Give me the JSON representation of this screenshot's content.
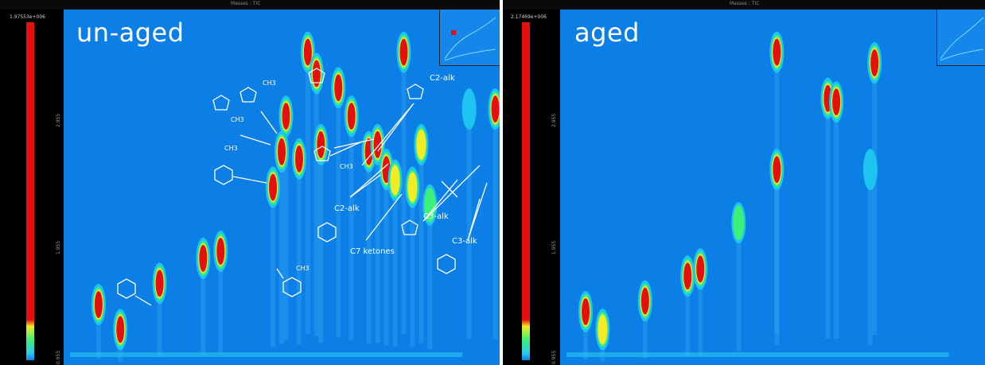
{
  "left_panel": {
    "top_title": "Masses : TIC",
    "scale_max": "1.97553e+006",
    "y_tick_1": "2.955",
    "y_tick_2": "1.955",
    "y_tick_3": "0.955",
    "big_label": "un-aged"
  },
  "right_panel": {
    "top_title": "Masses : TIC",
    "scale_max": "2.17469e+006",
    "y_tick_1": "2.955",
    "y_tick_2": "1.955",
    "y_tick_3": "0.955",
    "big_label": "aged"
  },
  "annotations": {
    "c2_alk_top": "C2-alk",
    "c2_alk_mid": "C2-alk",
    "c3_alk_right": "C3-alk",
    "c3_alk_bottom": "C3-alk",
    "c7_ketones": "C7 ketones",
    "ch3": "CH3"
  },
  "colors": {
    "background": "#0b7fe6",
    "peak_low": "#29c8ee",
    "peak_mid": "#3df07a",
    "peak_high": "#f4ec22",
    "peak_top": "#e40f0f",
    "frame": "#000000"
  },
  "chart_data": [
    {
      "type": "heatmap",
      "title": "un-aged",
      "colorscale": [
        "#1cc4ef",
        "#3df07a",
        "#f4ec22",
        "#e40f0f"
      ],
      "peaks": [
        {
          "x": 0.08,
          "y": 0.17,
          "i": 0.95
        },
        {
          "x": 0.13,
          "y": 0.1,
          "i": 0.9
        },
        {
          "x": 0.22,
          "y": 0.23,
          "i": 0.95
        },
        {
          "x": 0.32,
          "y": 0.3,
          "i": 0.95
        },
        {
          "x": 0.36,
          "y": 0.32,
          "i": 0.95
        },
        {
          "x": 0.48,
          "y": 0.5,
          "i": 0.95
        },
        {
          "x": 0.5,
          "y": 0.6,
          "i": 0.95
        },
        {
          "x": 0.51,
          "y": 0.7,
          "i": 0.95
        },
        {
          "x": 0.54,
          "y": 0.58,
          "i": 0.95
        },
        {
          "x": 0.56,
          "y": 0.88,
          "i": 0.95
        },
        {
          "x": 0.58,
          "y": 0.82,
          "i": 0.95
        },
        {
          "x": 0.59,
          "y": 0.62,
          "i": 0.95
        },
        {
          "x": 0.63,
          "y": 0.78,
          "i": 0.9
        },
        {
          "x": 0.66,
          "y": 0.7,
          "i": 0.9
        },
        {
          "x": 0.7,
          "y": 0.6,
          "i": 0.95
        },
        {
          "x": 0.72,
          "y": 0.62,
          "i": 0.95
        },
        {
          "x": 0.74,
          "y": 0.55,
          "i": 0.9
        },
        {
          "x": 0.76,
          "y": 0.52,
          "i": 0.85
        },
        {
          "x": 0.78,
          "y": 0.88,
          "i": 0.95
        },
        {
          "x": 0.8,
          "y": 0.5,
          "i": 0.85
        },
        {
          "x": 0.82,
          "y": 0.62,
          "i": 0.85
        },
        {
          "x": 0.84,
          "y": 0.45,
          "i": 0.7
        },
        {
          "x": 0.93,
          "y": 0.72,
          "i": 0.6
        },
        {
          "x": 0.99,
          "y": 0.72,
          "i": 0.9
        }
      ]
    },
    {
      "type": "heatmap",
      "title": "aged",
      "colorscale": [
        "#1cc4ef",
        "#3df07a",
        "#f4ec22",
        "#e40f0f"
      ],
      "peaks": [
        {
          "x": 0.06,
          "y": 0.15,
          "i": 0.95
        },
        {
          "x": 0.1,
          "y": 0.1,
          "i": 0.8
        },
        {
          "x": 0.2,
          "y": 0.18,
          "i": 0.9
        },
        {
          "x": 0.3,
          "y": 0.25,
          "i": 0.9
        },
        {
          "x": 0.33,
          "y": 0.27,
          "i": 0.9
        },
        {
          "x": 0.42,
          "y": 0.4,
          "i": 0.7
        },
        {
          "x": 0.51,
          "y": 0.55,
          "i": 0.95
        },
        {
          "x": 0.51,
          "y": 0.88,
          "i": 0.95
        },
        {
          "x": 0.63,
          "y": 0.75,
          "i": 0.95
        },
        {
          "x": 0.65,
          "y": 0.74,
          "i": 0.95
        },
        {
          "x": 0.73,
          "y": 0.55,
          "i": 0.6
        },
        {
          "x": 0.74,
          "y": 0.85,
          "i": 0.9
        }
      ]
    }
  ]
}
